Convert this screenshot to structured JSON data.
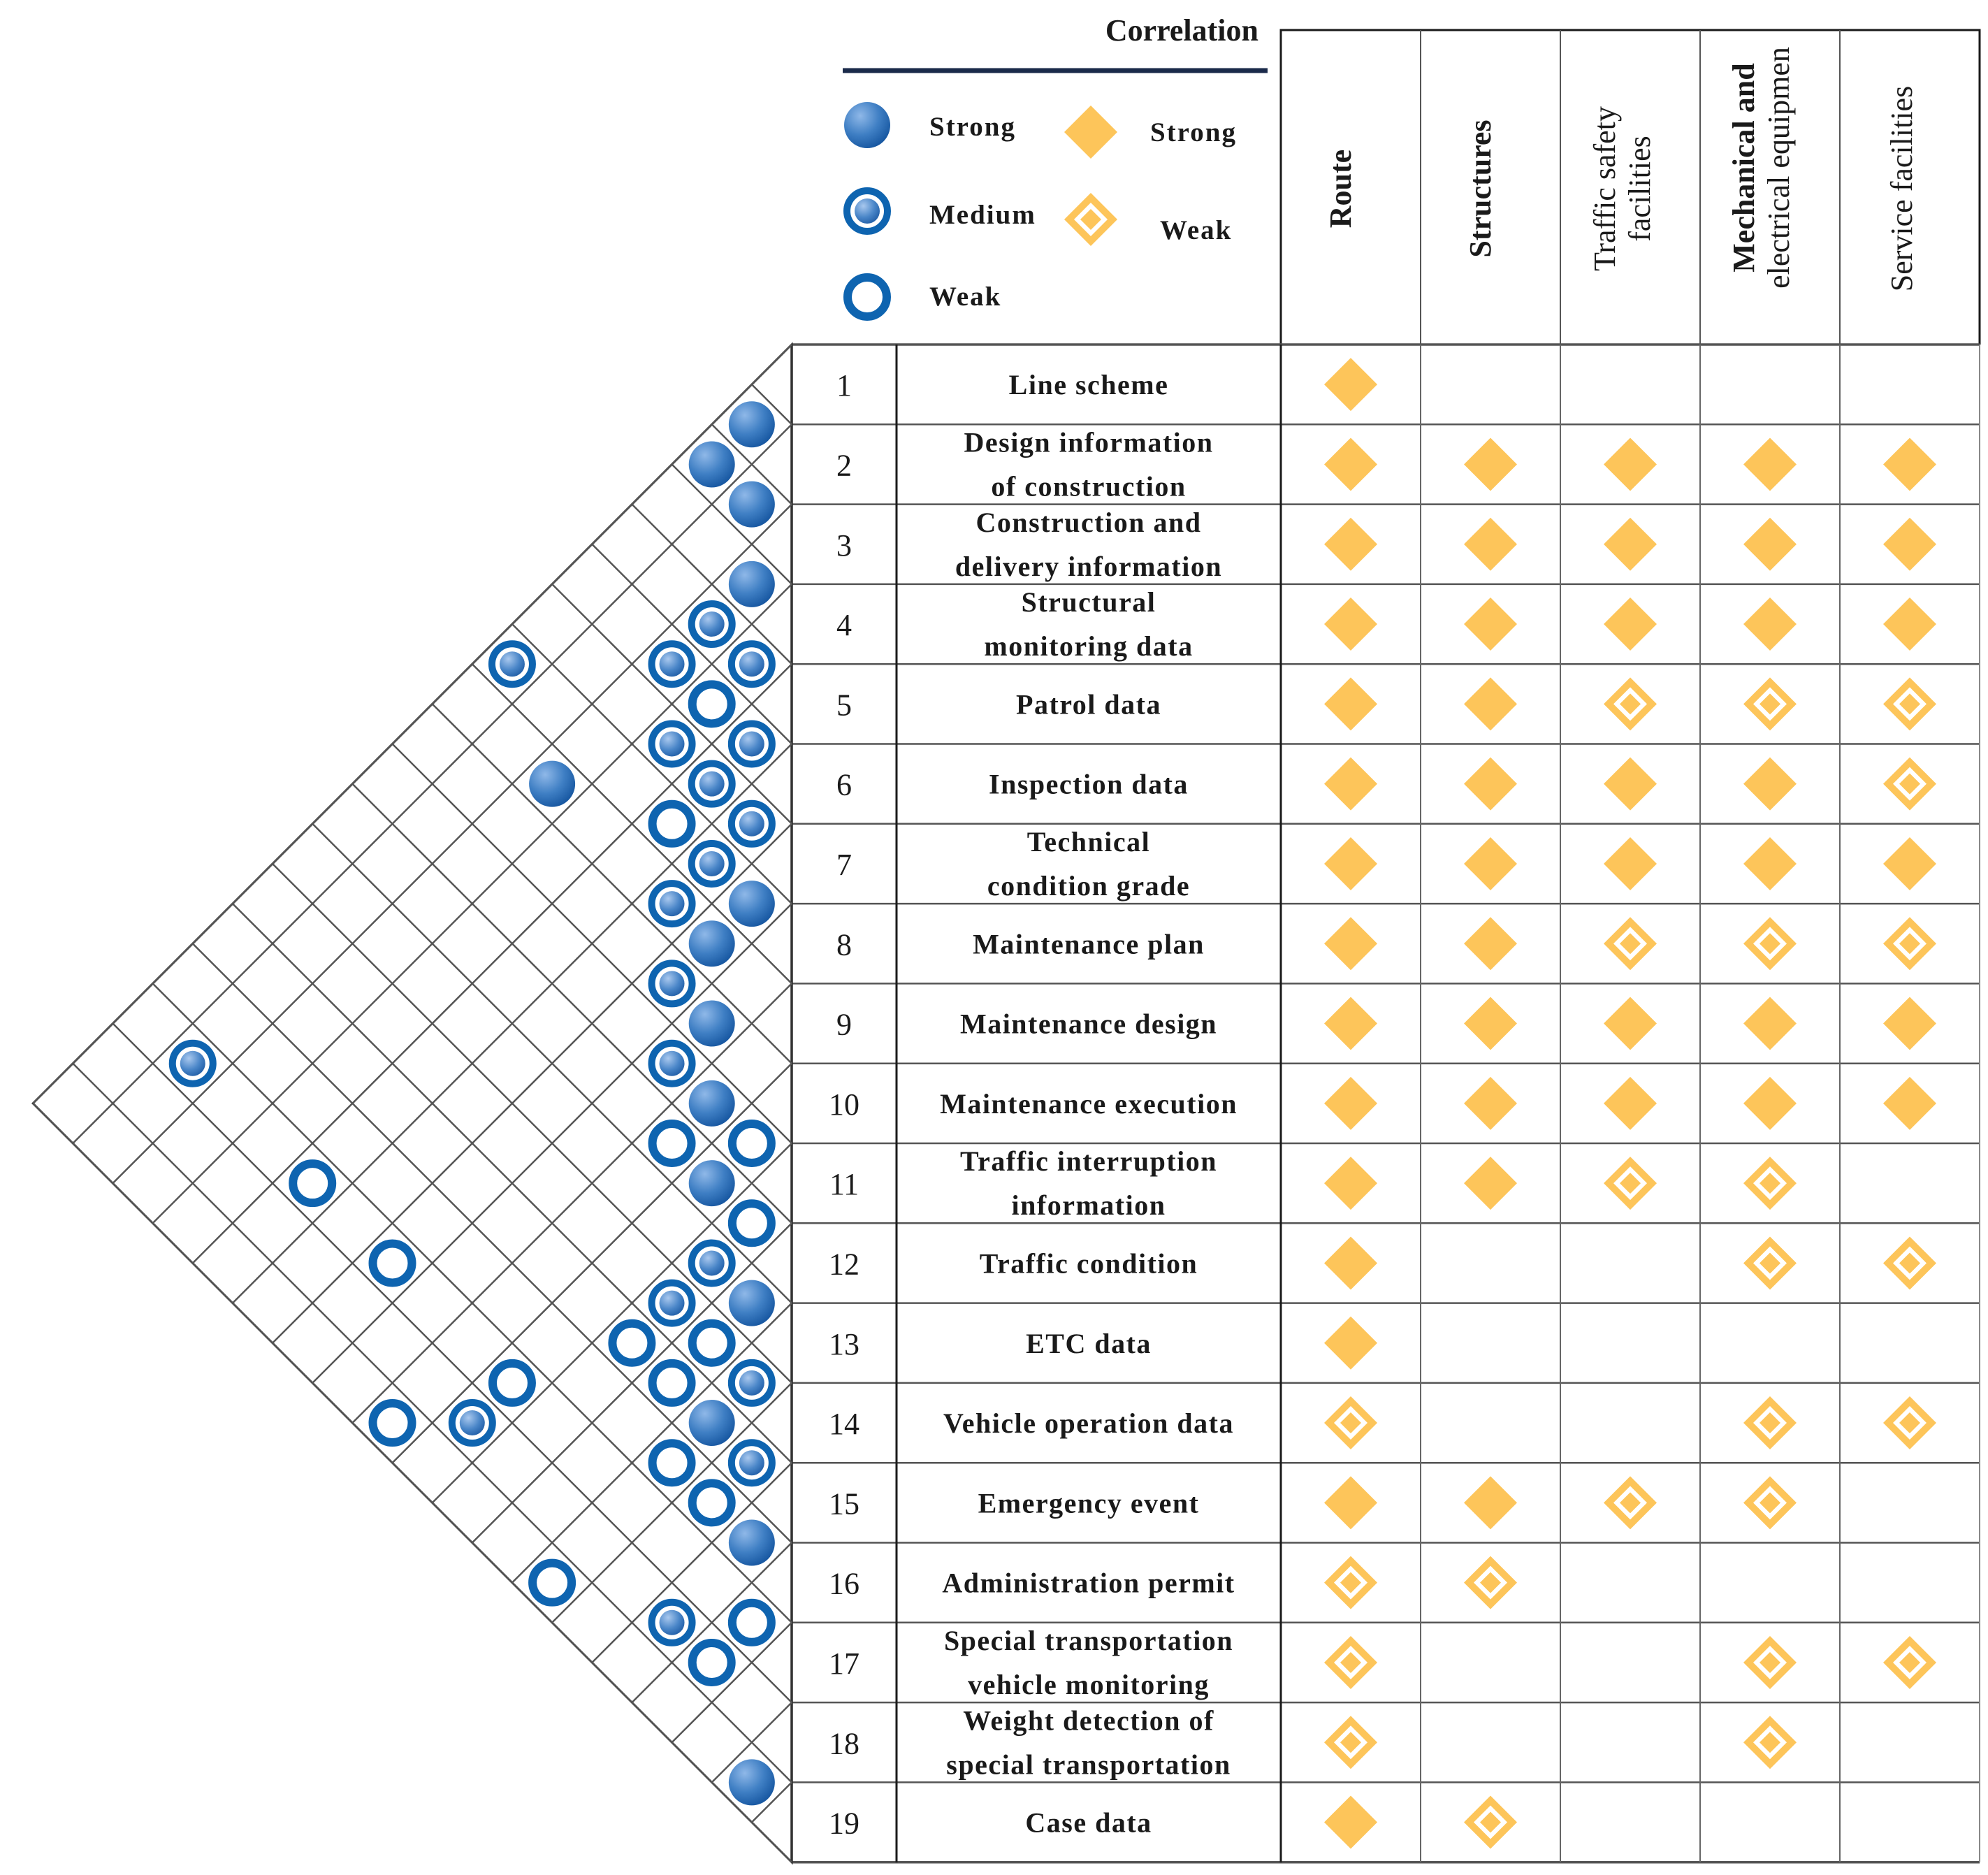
{
  "legend": {
    "title": "Correlation",
    "circles": [
      {
        "key": "S",
        "label": "Strong"
      },
      {
        "key": "M",
        "label": "Medium"
      },
      {
        "key": "W",
        "label": "Weak"
      }
    ],
    "diamonds": [
      {
        "key": "S",
        "label": "Strong"
      },
      {
        "key": "W",
        "label": "Weak"
      }
    ]
  },
  "columns": [
    "Route",
    "Structures",
    "Traffic safety facilities",
    "Mechanical and electrical equipmen",
    "Service facilities"
  ],
  "rows": [
    {
      "num": "1",
      "label": "Line scheme",
      "cells": [
        "S",
        "",
        "",
        "",
        ""
      ]
    },
    {
      "num": "2",
      "label": "Design information of construction",
      "cells": [
        "S",
        "S",
        "S",
        "S",
        "S"
      ]
    },
    {
      "num": "3",
      "label": "Construction and delivery information",
      "cells": [
        "S",
        "S",
        "S",
        "S",
        "S"
      ]
    },
    {
      "num": "4",
      "label": "Structural monitoring data",
      "cells": [
        "S",
        "S",
        "S",
        "S",
        "S"
      ]
    },
    {
      "num": "5",
      "label": "Patrol data",
      "cells": [
        "S",
        "S",
        "W",
        "W",
        "W"
      ]
    },
    {
      "num": "6",
      "label": "Inspection data",
      "cells": [
        "S",
        "S",
        "S",
        "S",
        "W"
      ]
    },
    {
      "num": "7",
      "label": "Technical condition grade",
      "cells": [
        "S",
        "S",
        "S",
        "S",
        "S"
      ]
    },
    {
      "num": "8",
      "label": "Maintenance plan",
      "cells": [
        "S",
        "S",
        "W",
        "W",
        "W"
      ]
    },
    {
      "num": "9",
      "label": "Maintenance design",
      "cells": [
        "S",
        "S",
        "S",
        "S",
        "S"
      ]
    },
    {
      "num": "10",
      "label": "Maintenance execution",
      "cells": [
        "S",
        "S",
        "S",
        "S",
        "S"
      ]
    },
    {
      "num": "11",
      "label": "Traffic interruption information",
      "cells": [
        "S",
        "S",
        "W",
        "W",
        ""
      ]
    },
    {
      "num": "12",
      "label": "Traffic condition",
      "cells": [
        "S",
        "",
        "",
        "W",
        "W"
      ]
    },
    {
      "num": "13",
      "label": "ETC data",
      "cells": [
        "S",
        "",
        "",
        "",
        ""
      ]
    },
    {
      "num": "14",
      "label": "Vehicle operation data",
      "cells": [
        "W",
        "",
        "",
        "W",
        "W"
      ]
    },
    {
      "num": "15",
      "label": "Emergency event",
      "cells": [
        "S",
        "S",
        "W",
        "W",
        ""
      ]
    },
    {
      "num": "16",
      "label": "Administration permit",
      "cells": [
        "W",
        "W",
        "",
        "",
        ""
      ]
    },
    {
      "num": "17",
      "label": "Special transportation vehicle monitoring",
      "cells": [
        "W",
        "",
        "",
        "W",
        "W"
      ]
    },
    {
      "num": "18",
      "label": "Weight detection of special transportation",
      "cells": [
        "W",
        "",
        "",
        "W",
        ""
      ]
    },
    {
      "num": "19",
      "label": "Case data",
      "cells": [
        "S",
        "W",
        "",
        "",
        ""
      ]
    }
  ],
  "pair_correlations": [
    {
      "pair": "1-2",
      "level": "S"
    },
    {
      "pair": "2-3",
      "level": "S"
    },
    {
      "pair": "1-3",
      "level": "S"
    },
    {
      "pair": "3-4",
      "level": "S"
    },
    {
      "pair": "3-5",
      "level": "M"
    },
    {
      "pair": "4-5",
      "level": "M"
    },
    {
      "pair": "3-6",
      "level": "M"
    },
    {
      "pair": "4-6",
      "level": "W"
    },
    {
      "pair": "4-7",
      "level": "M"
    },
    {
      "pair": "5-6",
      "level": "M"
    },
    {
      "pair": "5-7",
      "level": "M"
    },
    {
      "pair": "6-7",
      "level": "M"
    },
    {
      "pair": "5-8",
      "level": "W"
    },
    {
      "pair": "6-8",
      "level": "M"
    },
    {
      "pair": "7-8",
      "level": "S"
    },
    {
      "pair": "1-8",
      "level": "M"
    },
    {
      "pair": "6-9",
      "level": "M"
    },
    {
      "pair": "7-9",
      "level": "S"
    },
    {
      "pair": "3-9",
      "level": "S"
    },
    {
      "pair": "7-10",
      "level": "M"
    },
    {
      "pair": "8-10",
      "level": "S"
    },
    {
      "pair": "8-11",
      "level": "M"
    },
    {
      "pair": "9-11",
      "level": "S"
    },
    {
      "pair": "10-11",
      "level": "W"
    },
    {
      "pair": "9-12",
      "level": "W"
    },
    {
      "pair": "10-12",
      "level": "S"
    },
    {
      "pair": "11-12",
      "level": "W"
    },
    {
      "pair": "11-13",
      "level": "M"
    },
    {
      "pair": "12-13",
      "level": "S"
    },
    {
      "pair": "11-14",
      "level": "M"
    },
    {
      "pair": "12-14",
      "level": "W"
    },
    {
      "pair": "13-14",
      "level": "M"
    },
    {
      "pair": "11-15",
      "level": "W"
    },
    {
      "pair": "12-15",
      "level": "W"
    },
    {
      "pair": "13-15",
      "level": "S"
    },
    {
      "pair": "14-15",
      "level": "M"
    },
    {
      "pair": "15-16",
      "level": "S"
    },
    {
      "pair": "14-16",
      "level": "W"
    },
    {
      "pair": "13-16",
      "level": "W"
    },
    {
      "pair": "16-17",
      "level": "W"
    },
    {
      "pair": "10-18",
      "level": "M"
    },
    {
      "pair": "9-19",
      "level": "W"
    },
    {
      "pair": "13-19",
      "level": "W"
    },
    {
      "pair": "16-18",
      "level": "W"
    },
    {
      "pair": "15-18",
      "level": "M"
    },
    {
      "pair": "5-17",
      "level": "W"
    },
    {
      "pair": "7-17",
      "level": "W"
    },
    {
      "pair": "10-17",
      "level": "W"
    },
    {
      "pair": "18-19",
      "level": "S"
    },
    {
      "pair": "2-17",
      "level": "M"
    }
  ]
}
